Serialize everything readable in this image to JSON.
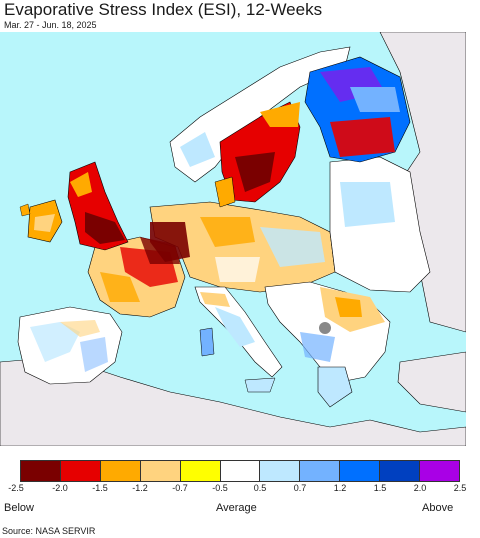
{
  "header": {
    "title": "Evaporative Stress Index (ESI), 12-Weeks",
    "subtitle": "Mar. 27 - Jun. 18, 2025"
  },
  "map": {
    "region": "Europe",
    "colors": {
      "ocean": "#b8f6fb",
      "non_data_land": "#ece8ec",
      "border": "#000000",
      "data_land": "#ffffff"
    }
  },
  "legend": {
    "colors": [
      "#7a0000",
      "#e60000",
      "#ffaa00",
      "#ffd37f",
      "#ffff00",
      "#ffffff",
      "#bee8ff",
      "#73b2ff",
      "#0070ff",
      "#0040c0",
      "#a900e6"
    ],
    "ticks": [
      "-2.5",
      "-2.0",
      "-1.5",
      "-1.2",
      "-0.7",
      "-0.5",
      "0.5",
      "0.7",
      "1.2",
      "1.5",
      "2.0",
      "2.5"
    ],
    "below_label": "Below",
    "average_label": "Average",
    "above_label": "Above"
  },
  "footer": {
    "source": "Source: NASA SERVIR"
  }
}
